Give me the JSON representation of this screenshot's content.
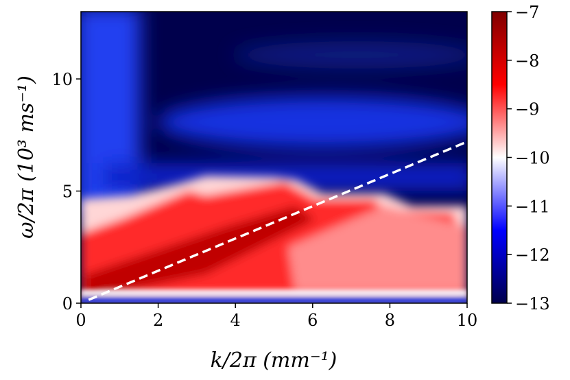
{
  "chart_data": {
    "type": "heatmap",
    "title": "",
    "xlabel": "k/2π (mm⁻¹)",
    "ylabel": "ω/2π (10³ ms⁻¹)",
    "xlim": [
      0,
      10
    ],
    "ylim": [
      0,
      13
    ],
    "x_ticks": [
      0,
      2,
      4,
      6,
      8,
      10
    ],
    "x_tick_labels": [
      "0",
      "2",
      "4",
      "6",
      "8",
      "10"
    ],
    "y_ticks": [
      0,
      5,
      10
    ],
    "y_tick_labels": [
      "0",
      "5",
      "10"
    ],
    "colorbar": {
      "range": [
        -13,
        -7
      ],
      "ticks": [
        -13,
        -12,
        -11,
        -10,
        -9,
        -8,
        -7
      ],
      "tick_labels": [
        "−13",
        "−12",
        "−11",
        "−10",
        "−9",
        "−8",
        "−7"
      ],
      "colormap": "seismic",
      "colors": [
        "#00004c",
        "#0000ff",
        "#ffffff",
        "#ff0000",
        "#800000"
      ]
    },
    "overlay_line": {
      "style": "dashed",
      "color": "#ffffff",
      "points": [
        [
          0.2,
          0.15
        ],
        [
          10,
          7.2
        ]
      ],
      "slope": 0.72
    },
    "regions": [
      {
        "label": "background",
        "value": -12.6
      },
      {
        "label": "upper blue band",
        "value": -11.8,
        "y_range": [
          6.8,
          9.0
        ]
      },
      {
        "label": "lower blue band",
        "value": -11.3,
        "y_range": [
          4.8,
          6.2
        ]
      },
      {
        "label": "red excitation region",
        "value": -8.5,
        "y_range": [
          0.3,
          5.5
        ]
      },
      {
        "label": "dispersion peak",
        "value": -7.3,
        "along": "overlay_line"
      }
    ]
  },
  "colors": {
    "axis": "#000000",
    "overlay": "#ffffff"
  }
}
